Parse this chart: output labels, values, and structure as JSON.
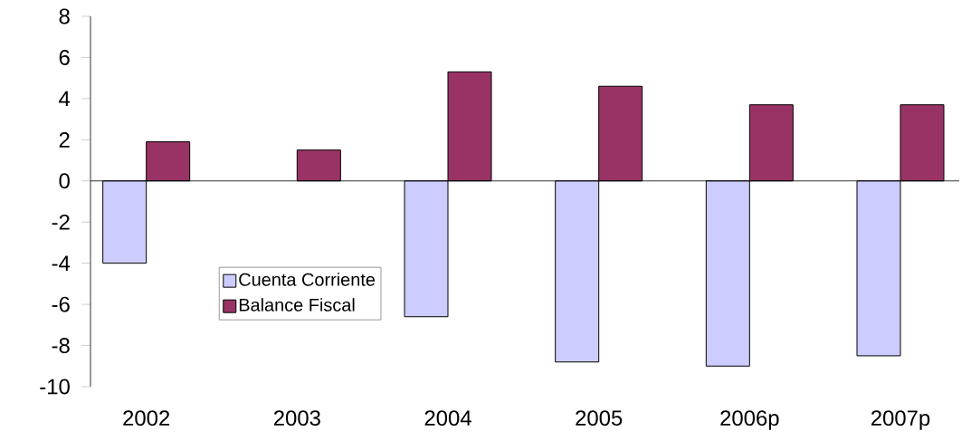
{
  "chart_data": {
    "type": "bar",
    "categories": [
      "2002",
      "2003",
      "2004",
      "2005",
      "2006p",
      "2007p"
    ],
    "series": [
      {
        "name": "Cuenta Corriente",
        "color": "#ccccff",
        "values": [
          -4.0,
          null,
          -6.6,
          -8.8,
          -9.0,
          -8.5
        ]
      },
      {
        "name": "Balance Fiscal",
        "color": "#993366",
        "values": [
          1.9,
          1.5,
          5.3,
          4.6,
          3.7,
          3.7
        ]
      }
    ],
    "ylim": [
      -10,
      8
    ],
    "yticks": [
      -10,
      -8,
      -6,
      -4,
      -2,
      0,
      2,
      4,
      6,
      8
    ],
    "legend": "bottom left"
  }
}
